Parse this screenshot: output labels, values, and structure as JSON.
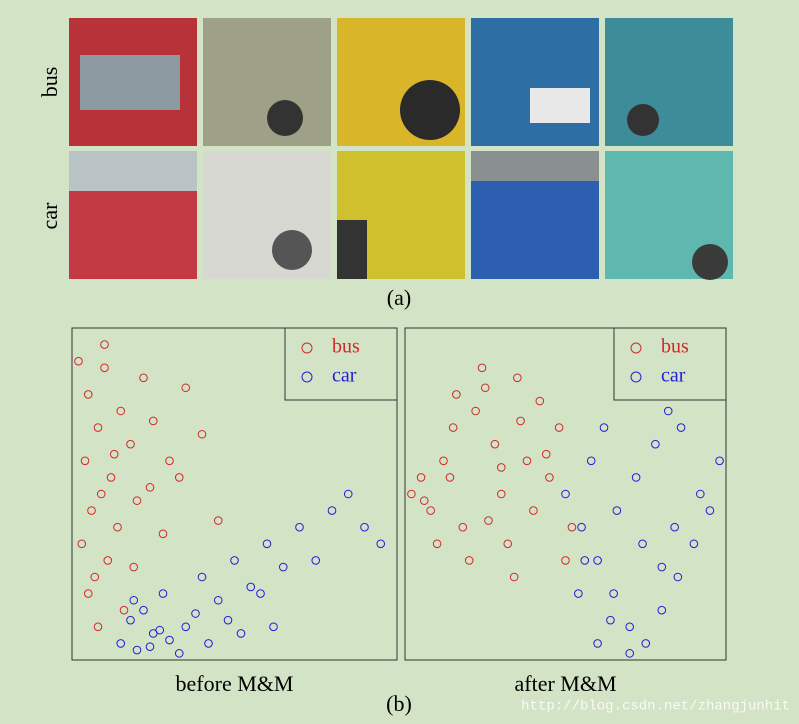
{
  "image_rows": [
    "bus",
    "car"
  ],
  "caption_a": "(a)",
  "caption_b": "(b)",
  "watermark": "http://blog.csdn.net/zhangjunhit",
  "chart_data": [
    {
      "type": "scatter",
      "title": "before M&M",
      "xlim": [
        0,
        100
      ],
      "ylim": [
        0,
        100
      ],
      "legend": "upper right",
      "series": [
        {
          "name": "bus",
          "color": "#d62728",
          "x": [
            2,
            5,
            8,
            4,
            10,
            12,
            6,
            15,
            3,
            9,
            18,
            22,
            7,
            14,
            25,
            11,
            30,
            5,
            20,
            28,
            35,
            16,
            40,
            13,
            8,
            24,
            45,
            19,
            33,
            10
          ],
          "values": [
            90,
            80,
            70,
            60,
            88,
            55,
            45,
            75,
            35,
            50,
            65,
            85,
            25,
            40,
            72,
            30,
            60,
            20,
            48,
            38,
            82,
            15,
            68,
            62,
            10,
            52,
            42,
            28,
            55,
            95
          ]
        },
        {
          "name": "car",
          "color": "#1f1fd6",
          "x": [
            15,
            20,
            25,
            18,
            30,
            22,
            28,
            35,
            40,
            45,
            50,
            55,
            60,
            65,
            70,
            80,
            90,
            95,
            33,
            38,
            24,
            27,
            48,
            58,
            75,
            85,
            42,
            52,
            19,
            62
          ],
          "values": [
            5,
            3,
            8,
            12,
            6,
            15,
            20,
            10,
            25,
            18,
            30,
            22,
            35,
            28,
            40,
            45,
            40,
            35,
            2,
            14,
            4,
            9,
            12,
            20,
            30,
            50,
            5,
            8,
            18,
            10
          ]
        }
      ]
    },
    {
      "type": "scatter",
      "title": "after M&M",
      "xlim": [
        0,
        100
      ],
      "ylim": [
        0,
        100
      ],
      "legend": "upper right",
      "series": [
        {
          "name": "bus",
          "color": "#d62728",
          "x": [
            2,
            5,
            8,
            12,
            15,
            18,
            22,
            25,
            28,
            30,
            32,
            35,
            38,
            40,
            42,
            45,
            48,
            50,
            10,
            20,
            14,
            26,
            34,
            6,
            44,
            36,
            16,
            24,
            30,
            52
          ],
          "values": [
            50,
            55,
            45,
            60,
            70,
            40,
            75,
            82,
            65,
            50,
            35,
            85,
            60,
            45,
            78,
            55,
            70,
            30,
            35,
            30,
            55,
            42,
            25,
            48,
            62,
            72,
            80,
            88,
            58,
            40
          ]
        },
        {
          "name": "car",
          "color": "#1f1fd6",
          "x": [
            50,
            55,
            60,
            65,
            70,
            75,
            80,
            85,
            90,
            95,
            98,
            58,
            62,
            68,
            72,
            78,
            82,
            88,
            92,
            54,
            66,
            74,
            84,
            60,
            70,
            80,
            76,
            64,
            86,
            56
          ],
          "values": [
            50,
            40,
            30,
            20,
            10,
            5,
            15,
            25,
            35,
            45,
            60,
            60,
            70,
            80,
            55,
            65,
            75,
            85,
            50,
            20,
            45,
            35,
            40,
            5,
            2,
            28,
            90,
            12,
            70,
            30
          ]
        }
      ]
    }
  ]
}
